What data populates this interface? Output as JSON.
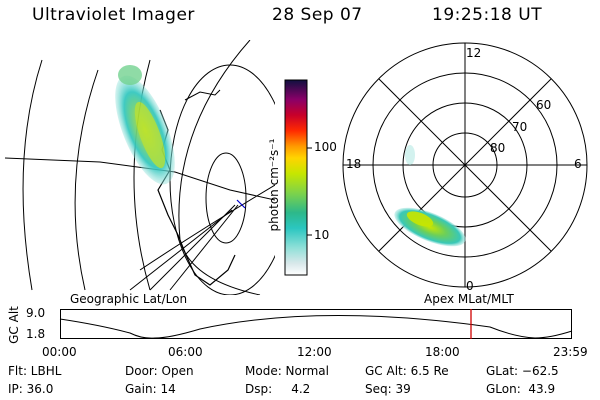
{
  "header": {
    "title": "Ultraviolet Imager",
    "date": "28 Sep 07",
    "time": "19:25:18 UT"
  },
  "colorbar": {
    "label": "photon cm⁻²s⁻¹",
    "ticks": [
      "100",
      "10"
    ]
  },
  "polar": {
    "mlt_labels": {
      "top": "12",
      "left": "18",
      "right": "6",
      "bottom": "0"
    },
    "lat_labels": [
      "60",
      "70",
      "80"
    ]
  },
  "timeline": {
    "left_title": "Geographic Lat/Lon",
    "right_title": "Apex MLat/MLT",
    "axis_label": "GC Alt",
    "y_max": "9.0",
    "y_min": "1.8",
    "x_ticks": [
      "00:00",
      "06:00",
      "12:00",
      "18:00",
      "23:59"
    ]
  },
  "footer": {
    "flt": "Flt: LBHL",
    "ip": "IP: 36.0",
    "door": "Door: Open",
    "gain": "Gain: 14",
    "mode": "Mode: Normal",
    "dsp": "Dsp:     4.2",
    "gcalt": "GC Alt: 6.5 Re",
    "seq": "Seq: 39",
    "glat": "GLat: −62.5",
    "glon": "GLon:  43.9"
  },
  "colors": {
    "marker": "#d00000"
  }
}
